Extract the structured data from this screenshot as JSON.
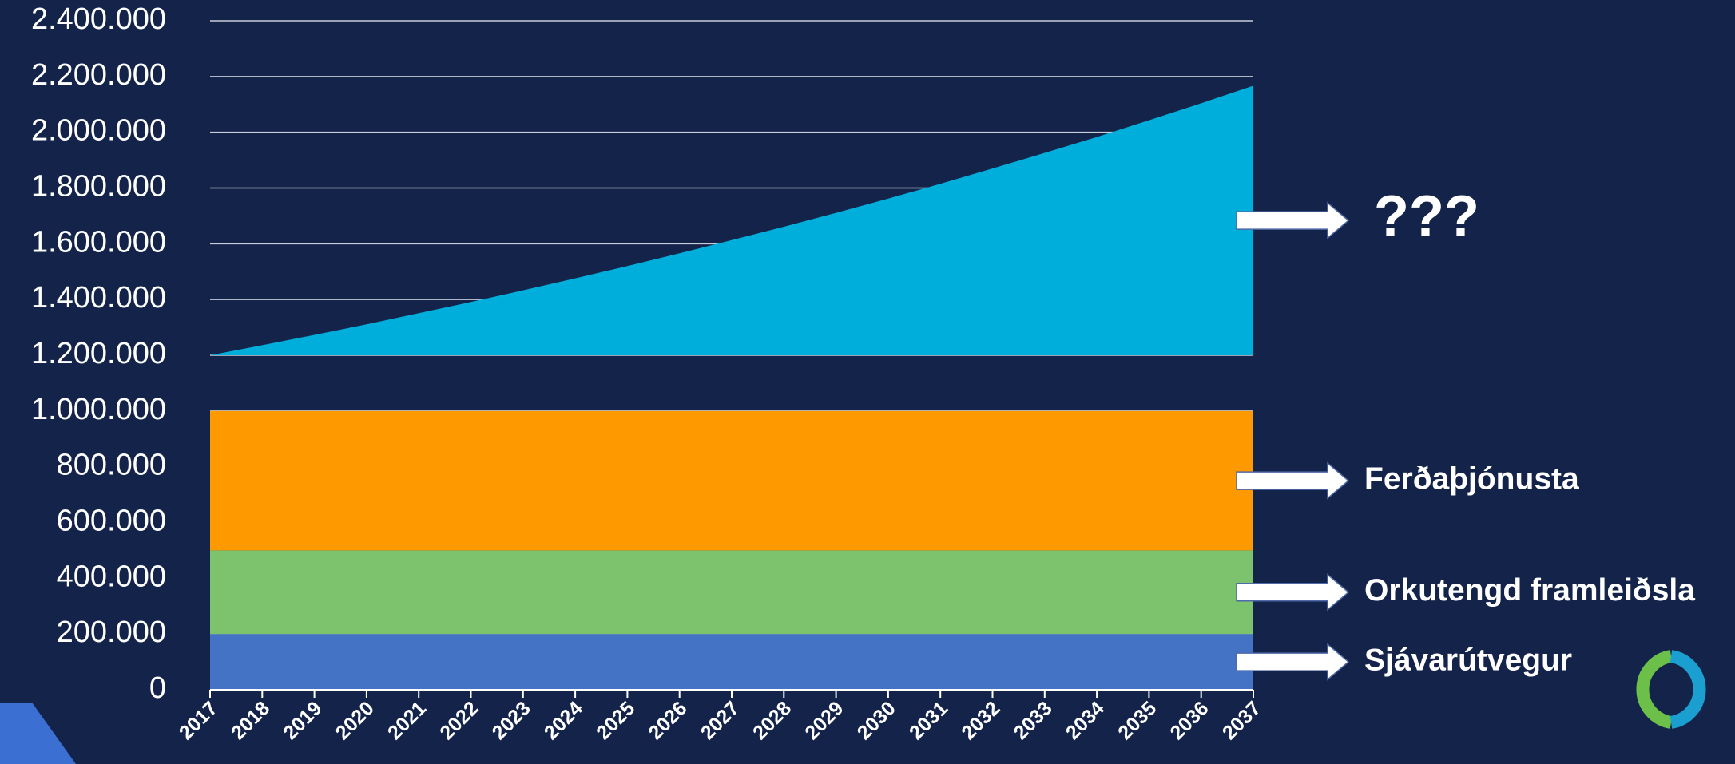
{
  "chart_data": {
    "type": "area",
    "categories": [
      "2017",
      "2018",
      "2019",
      "2020",
      "2021",
      "2022",
      "2023",
      "2024",
      "2025",
      "2026",
      "2027",
      "2028",
      "2029",
      "2030",
      "2031",
      "2032",
      "2033",
      "2034",
      "2035",
      "2036",
      "2037"
    ],
    "series": [
      {
        "name": "Sjávarútvegur",
        "color": "#4472c4",
        "stacked": true,
        "values": [
          200000,
          200000,
          200000,
          200000,
          200000,
          200000,
          200000,
          200000,
          200000,
          200000,
          200000,
          200000,
          200000,
          200000,
          200000,
          200000,
          200000,
          200000,
          200000,
          200000,
          200000
        ]
      },
      {
        "name": "Orkutengd framleiðsla",
        "color": "#7dc36e",
        "stacked": true,
        "values": [
          300000,
          300000,
          300000,
          300000,
          300000,
          300000,
          300000,
          300000,
          300000,
          300000,
          300000,
          300000,
          300000,
          300000,
          300000,
          300000,
          300000,
          300000,
          300000,
          300000,
          300000
        ]
      },
      {
        "name": "Ferðaþjónusta",
        "color": "#ff9900",
        "stacked": true,
        "values": [
          500000,
          500000,
          500000,
          500000,
          500000,
          500000,
          500000,
          500000,
          500000,
          500000,
          500000,
          500000,
          500000,
          500000,
          500000,
          500000,
          500000,
          500000,
          500000,
          500000,
          500000
        ]
      },
      {
        "name": "???",
        "color": "#00aedb",
        "stacked": false,
        "values": [
          1200000,
          1236000,
          1273000,
          1311000,
          1351000,
          1391000,
          1433000,
          1476000,
          1520000,
          1566000,
          1613000,
          1661000,
          1711000,
          1762000,
          1815000,
          1870000,
          1926000,
          1983000,
          2043000,
          2104000,
          2167000
        ]
      }
    ],
    "ylim": [
      0,
      2400000
    ],
    "yticks": [
      0,
      {
        "value": 200000,
        "label": "200.000"
      },
      {
        "value": 400000,
        "label": "400.000"
      },
      {
        "value": 600000,
        "label": "600.000"
      },
      {
        "value": 800000,
        "label": "800.000"
      },
      {
        "value": 1000000,
        "label": "1.000.000"
      },
      {
        "value": 1200000,
        "label": "1.200.000"
      },
      {
        "value": 1400000,
        "label": "1.400.000"
      },
      {
        "value": 1600000,
        "label": "1.600.000"
      },
      {
        "value": 1800000,
        "label": "1.800.000"
      },
      {
        "value": 2000000,
        "label": "2.000.000"
      },
      {
        "value": 2200000,
        "label": "2.200.000"
      },
      {
        "value": 2400000,
        "label": "2.400.000"
      }
    ],
    "grid": true
  }
}
